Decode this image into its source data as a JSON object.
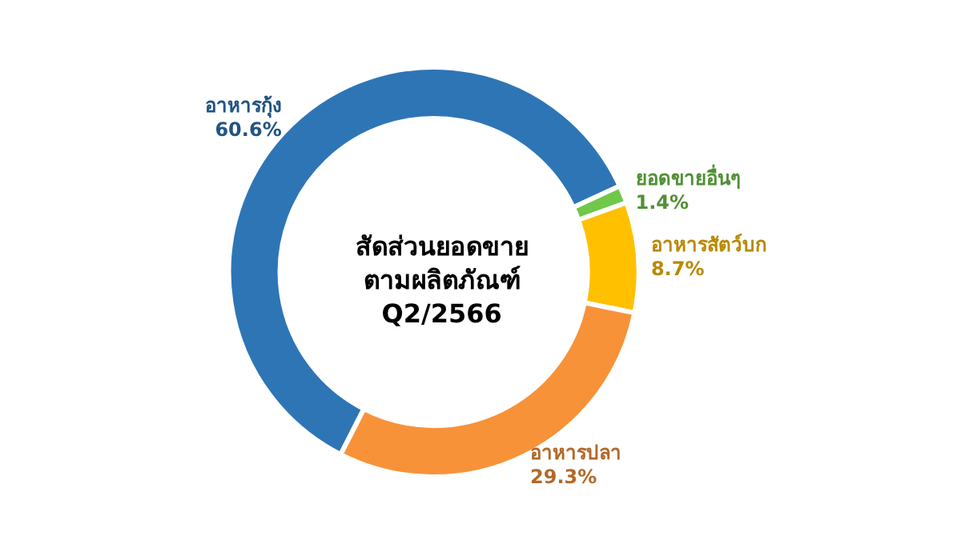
{
  "chart_data": {
    "type": "donut",
    "title": "สัดส่วนยอดขาย\nตามผลิตภัณฑ์\nQ2/2566",
    "categories": [
      "อาหารกุ้ง",
      "ยอดขายอื่นๆ",
      "อาหารสัตว์บก",
      "อาหารปลา"
    ],
    "values": [
      60.6,
      1.4,
      8.7,
      29.3
    ],
    "colors": [
      "#2e75b6",
      "#70c84a",
      "#ffc000",
      "#f79239"
    ],
    "value_labels": [
      "60.6%",
      "1.4%",
      "8.7%",
      "29.3%"
    ],
    "legend": false
  }
}
